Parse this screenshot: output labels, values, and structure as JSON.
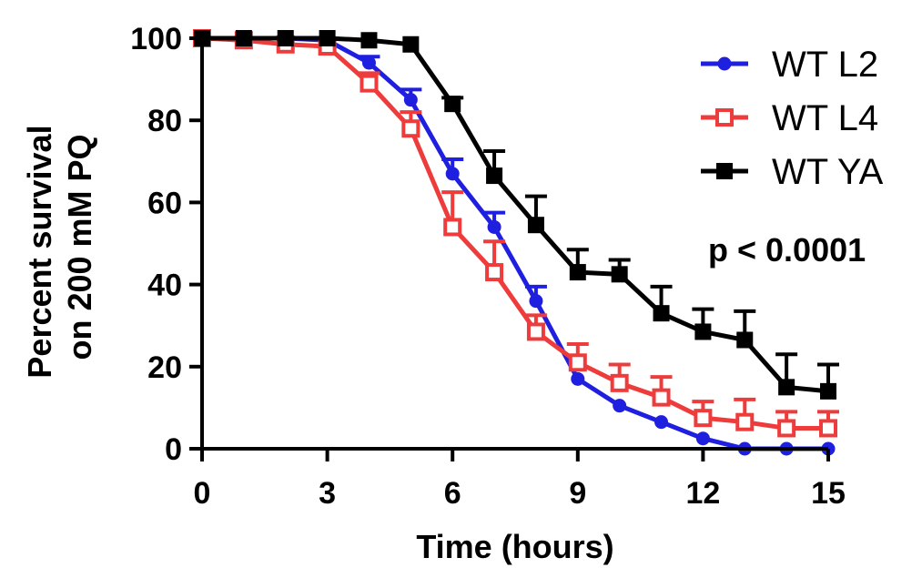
{
  "chart_data": {
    "type": "line",
    "title": "",
    "xlabel": "Time (hours)",
    "ylabel": [
      "Percent survival",
      "on 200 mM PQ"
    ],
    "xlim": [
      0,
      15
    ],
    "ylim": [
      0,
      100
    ],
    "xticks": [
      0,
      3,
      6,
      9,
      12,
      15
    ],
    "yticks": [
      0,
      20,
      40,
      60,
      80,
      100
    ],
    "x": [
      0,
      1,
      2,
      3,
      4,
      5,
      6,
      7,
      8,
      9,
      10,
      11,
      12,
      13,
      14,
      15
    ],
    "grid": false,
    "legend_position": "top-right",
    "annotation": "p < 0.0001",
    "series": [
      {
        "name": "WT L2",
        "color": "#1f1fe0",
        "marker": "filled-circle",
        "values": [
          100,
          100,
          100,
          99.5,
          94,
          85,
          67,
          54,
          36,
          17,
          10.5,
          6.5,
          2.5,
          0,
          0,
          0
        ],
        "errors": [
          0,
          0,
          0,
          0,
          1.5,
          2.5,
          3.5,
          3.5,
          3.5,
          0,
          0,
          0,
          0,
          0,
          0,
          0
        ]
      },
      {
        "name": "WT L4",
        "color": "#ee3b3b",
        "marker": "open-square",
        "values": [
          100,
          99.5,
          98.5,
          98,
          89,
          78,
          54,
          43,
          28.5,
          21,
          16,
          12.5,
          7.5,
          6.5,
          5,
          5
        ],
        "errors": [
          0,
          0,
          0,
          0,
          2.5,
          4,
          8.5,
          7.5,
          4,
          4.5,
          4.5,
          5,
          4,
          5.5,
          4,
          4
        ]
      },
      {
        "name": "WT YA",
        "color": "#000000",
        "marker": "filled-square",
        "values": [
          100,
          100,
          100,
          100,
          99.5,
          98.5,
          84,
          66.5,
          54.5,
          43,
          42.5,
          33,
          28.5,
          26.5,
          15,
          14
        ],
        "errors": [
          0,
          0,
          0,
          0,
          0,
          0,
          1.5,
          6,
          7,
          5.5,
          3.5,
          6.5,
          5.5,
          7,
          8,
          6.5
        ]
      }
    ]
  }
}
